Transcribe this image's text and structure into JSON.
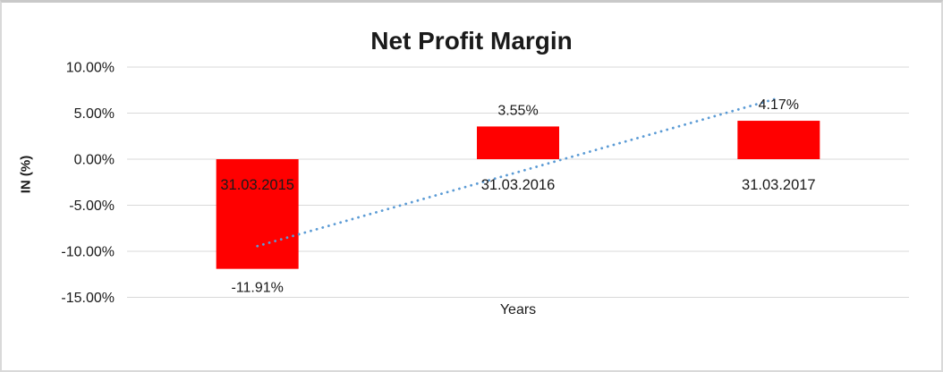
{
  "chart_data": {
    "type": "bar",
    "title": "Net Profit Margin",
    "xlabel": "Years",
    "ylabel": "IN (%)",
    "categories": [
      "31.03.2015",
      "31.03.2016",
      "31.03.2017"
    ],
    "values": [
      -11.91,
      3.55,
      4.17
    ],
    "data_labels": [
      "-11.91%",
      "3.55%",
      "4.17%"
    ],
    "y_ticks": [
      10,
      5,
      0,
      -5,
      -10,
      -15
    ],
    "y_tick_labels": [
      "10.00%",
      "5.00%",
      "0.00%",
      "-5.00%",
      "-10.00%",
      "-15.00%"
    ],
    "ylim": [
      -15,
      10
    ],
    "bar_color": "#FF0000",
    "gridlines": true,
    "gridline_color": "#d9d9d9",
    "legend": "none",
    "trendline": {
      "type": "linear",
      "style": "dotted",
      "color": "#5B9BD5"
    },
    "text_color": "#1a1a1a"
  }
}
